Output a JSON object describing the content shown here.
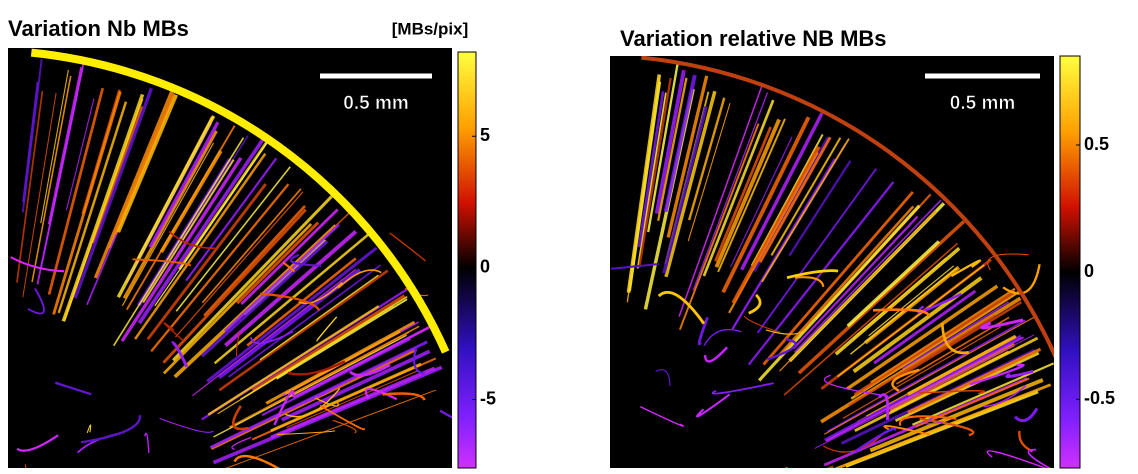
{
  "chart_data": [
    {
      "type": "image",
      "title": "Variation Nb MBs",
      "colorbar_label": "[MBs/pix]",
      "scalebar_label": "0.5 mm",
      "clim": [
        -7.6,
        8.2
      ],
      "cticks": [
        -5,
        0,
        5
      ]
    },
    {
      "type": "image",
      "title": "Variation relative NB MBs",
      "scalebar_label": "0.5 mm",
      "clim": [
        -0.77,
        0.85
      ],
      "cticks": [
        -0.5,
        0,
        0.5
      ]
    }
  ]
}
